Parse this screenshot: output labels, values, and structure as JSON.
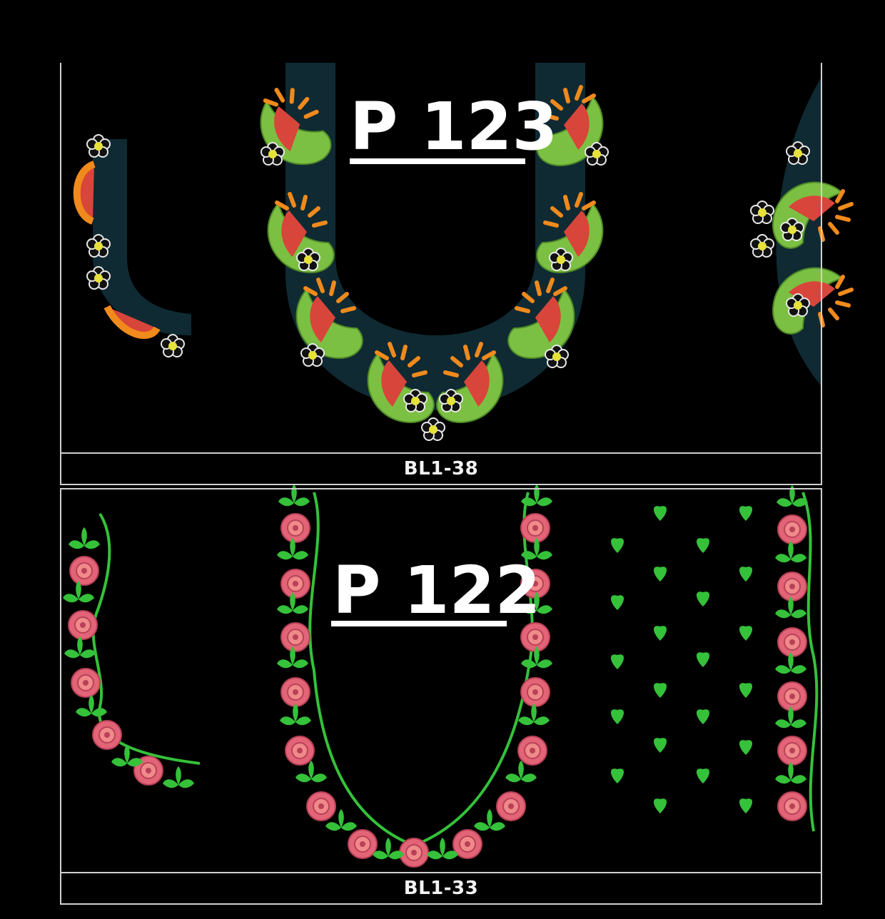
{
  "designs": [
    {
      "title": "P 123",
      "code": "BL1-38"
    },
    {
      "title": "P 122",
      "code": "BL1-33"
    }
  ],
  "colors": {
    "background": "#000000",
    "frame": "#cfcfcf",
    "teal_fill": "#0f2a33",
    "leaf_green": "#7cc043",
    "petal_red": "#d8453a",
    "petal_orange": "#f08a1c",
    "rose_pink": "#e36477",
    "vine_green": "#35c13a"
  }
}
